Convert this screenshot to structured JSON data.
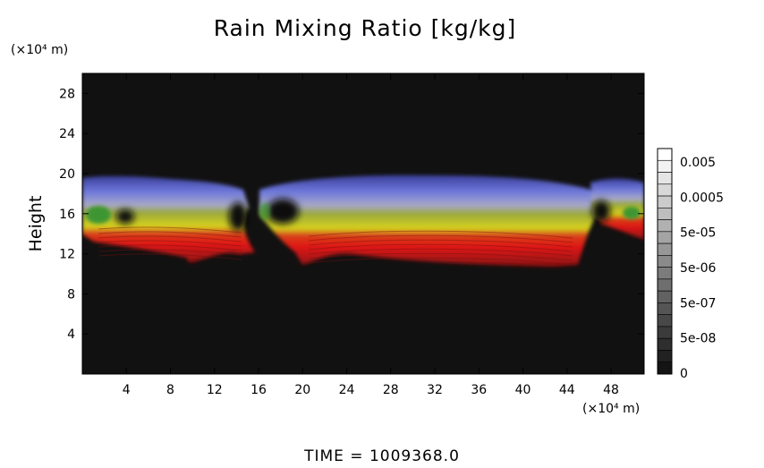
{
  "chart_data": {
    "type": "heatmap",
    "title": "Rain Mixing Ratio [kg/kg]",
    "ylabel": "Height",
    "y_unit": "(×10⁴ m)",
    "x_unit": "(×10⁴ m)",
    "x_ticks": [
      4,
      8,
      12,
      16,
      20,
      24,
      28,
      32,
      36,
      40,
      44,
      48
    ],
    "y_ticks": [
      4,
      8,
      12,
      16,
      20,
      24,
      28
    ],
    "xlim": [
      0,
      51
    ],
    "ylim": [
      0,
      30
    ],
    "colorbar_labels": [
      "0.005",
      "0.0005",
      "5e-05",
      "5e-06",
      "5e-07",
      "5e-08",
      "0"
    ],
    "time_label": "TIME  =  1009368.0",
    "colors": {
      "background": "#111111",
      "low": "#d01a1a",
      "mid": "#c8c81e",
      "high": "#5a64d2",
      "green": "#3c9632"
    }
  }
}
